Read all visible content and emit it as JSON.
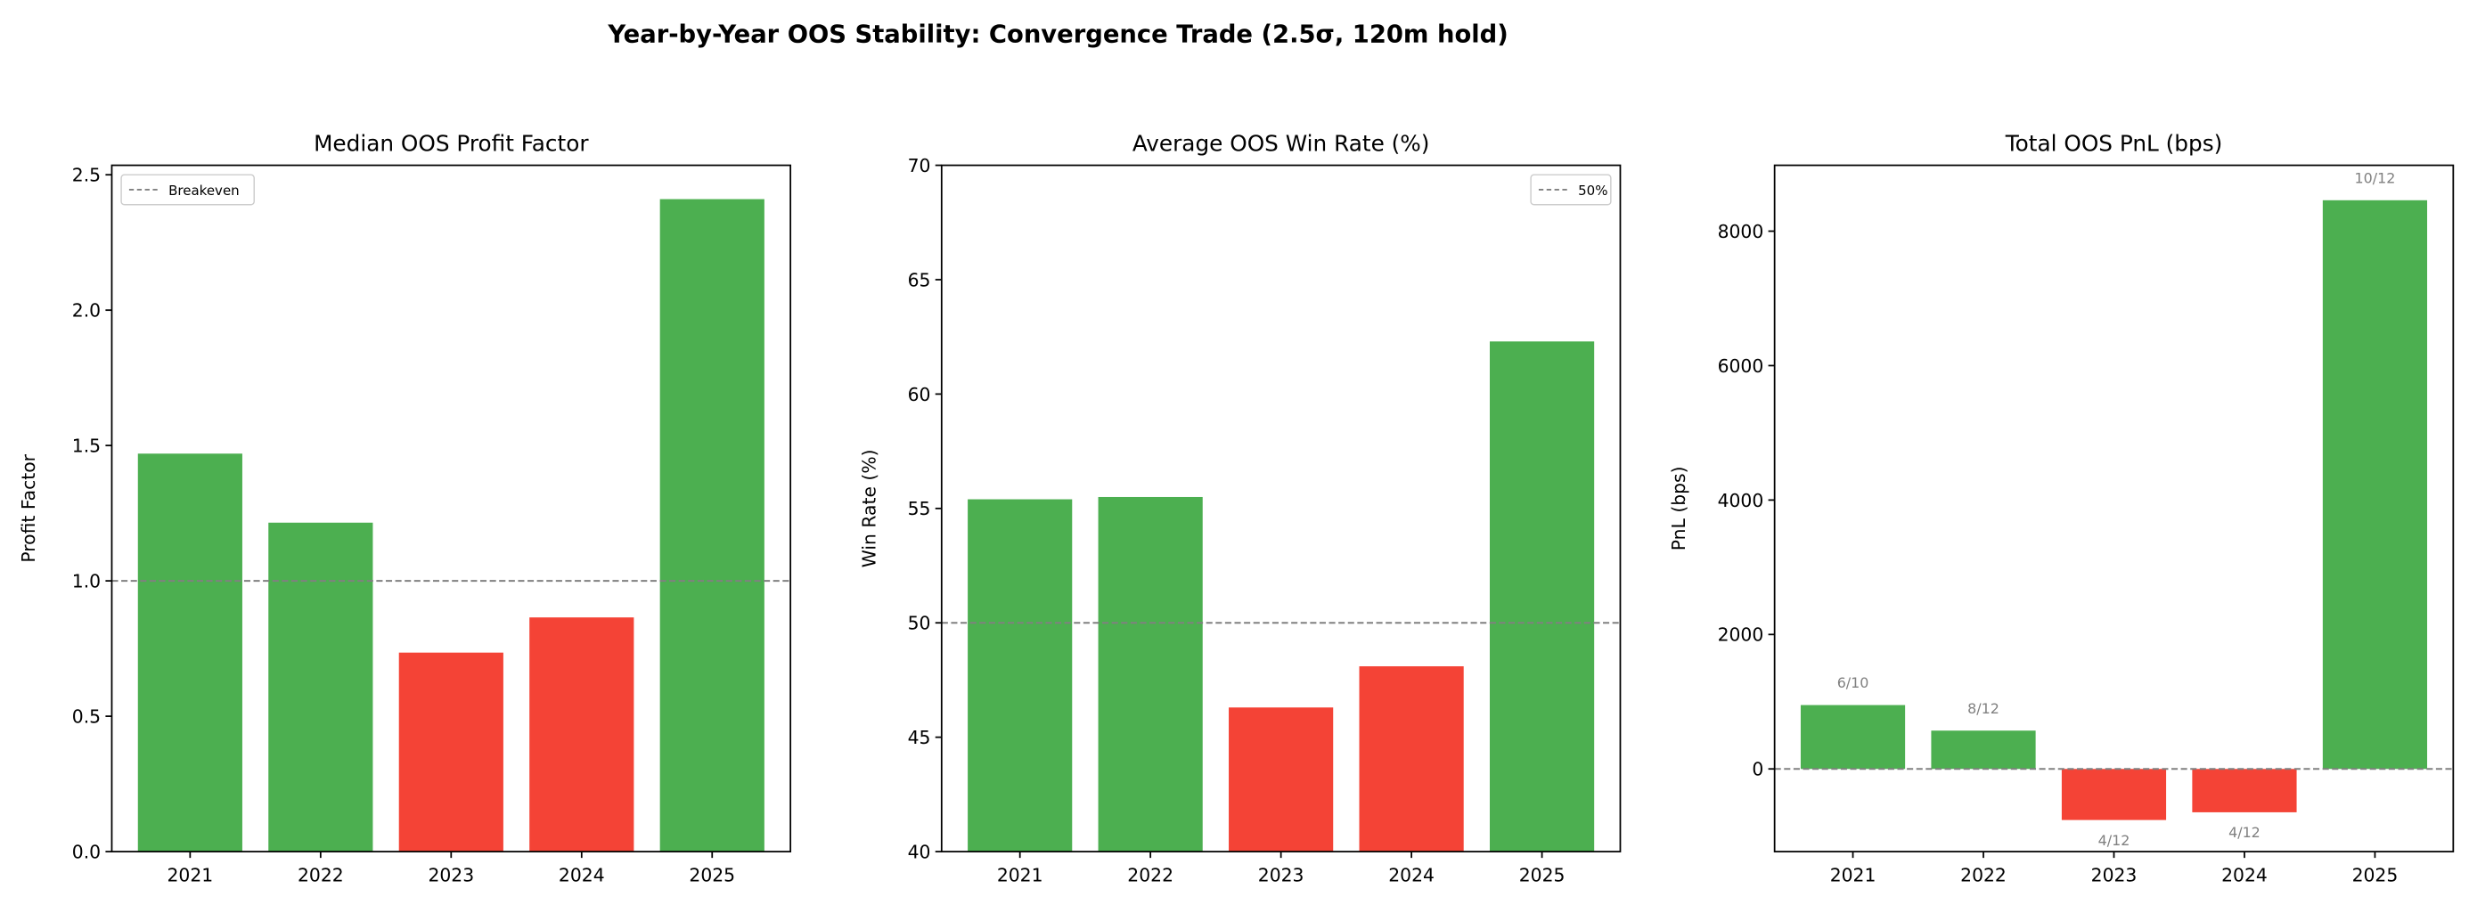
{
  "suptitle": "Year-by-Year OOS Stability: Convergence Trade (2.5σ, 120m hold)",
  "colors": {
    "positive": "#4caf50",
    "negative": "#f44336",
    "reference": "#808080",
    "annotation": "#808080"
  },
  "chart_data": [
    {
      "type": "bar",
      "title": "Median OOS Profit Factor",
      "xlabel": "",
      "ylabel": "Profit Factor",
      "categories": [
        "2021",
        "2022",
        "2023",
        "2024",
        "2025"
      ],
      "values": [
        1.47,
        1.215,
        0.735,
        0.865,
        2.41
      ],
      "ylim": [
        0,
        2.535
      ],
      "yticks": [
        0.0,
        0.5,
        1.0,
        1.5,
        2.0,
        2.5
      ],
      "ytick_labels": [
        "0.0",
        "0.5",
        "1.0",
        "1.5",
        "2.0",
        "2.5"
      ],
      "reference_line": {
        "y": 1.0,
        "label": "Breakeven",
        "style": "dashed"
      },
      "legend": {
        "placement": "upper-left",
        "entries": [
          "Breakeven"
        ]
      },
      "grid": false
    },
    {
      "type": "bar",
      "title": "Average OOS Win Rate (%)",
      "xlabel": "",
      "ylabel": "Win Rate (%)",
      "categories": [
        "2021",
        "2022",
        "2023",
        "2024",
        "2025"
      ],
      "values": [
        55.4,
        55.5,
        46.3,
        48.1,
        62.3
      ],
      "ylim": [
        40,
        70
      ],
      "yticks": [
        40,
        45,
        50,
        55,
        60,
        65,
        70
      ],
      "ytick_labels": [
        "40",
        "45",
        "50",
        "55",
        "60",
        "65",
        "70"
      ],
      "reference_line": {
        "y": 50,
        "label": "50%",
        "style": "dashed"
      },
      "legend": {
        "placement": "upper-right",
        "entries": [
          "50%"
        ]
      },
      "grid": false
    },
    {
      "type": "bar",
      "title": "Total OOS PnL (bps)",
      "xlabel": "",
      "ylabel": "PnL (bps)",
      "categories": [
        "2021",
        "2022",
        "2023",
        "2024",
        "2025"
      ],
      "values": [
        950,
        570,
        -760,
        -645,
        8460
      ],
      "annotations": [
        "6/10",
        "8/12",
        "4/12",
        "4/12",
        "10/12"
      ],
      "ylim": [
        -1230,
        8980
      ],
      "yticks": [
        0,
        2000,
        4000,
        6000,
        8000
      ],
      "ytick_labels": [
        "0",
        "2000",
        "4000",
        "6000",
        "8000"
      ],
      "reference_line": {
        "y": 0,
        "label": "",
        "style": "dashed"
      },
      "grid": false
    }
  ]
}
